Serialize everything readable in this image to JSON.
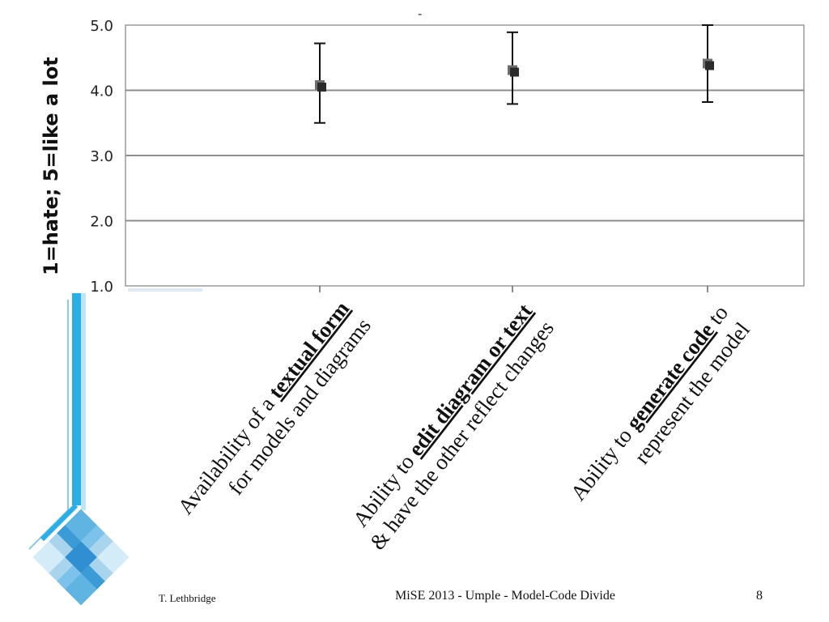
{
  "slide": {
    "author": "T. Lethbridge",
    "footer_title": "MiSE 2013 - Umple - Model-Code Divide",
    "page_number": "8",
    "top_mark": "-"
  },
  "chart_data": {
    "type": "scatter",
    "ylabel": "1=hate; 5=like a lot",
    "ylim": [
      1.0,
      5.0
    ],
    "yticks": [
      "1.0",
      "2.0",
      "3.0",
      "4.0",
      "5.0"
    ],
    "grid": true,
    "categories": [
      {
        "lines": [
          [
            {
              "t": "Availability of a ",
              "u": false
            },
            {
              "t": "textual form",
              "u": true
            }
          ],
          [
            {
              "t": "for models and diagrams",
              "u": false
            }
          ]
        ]
      },
      {
        "lines": [
          [
            {
              "t": "Ability to ",
              "u": false
            },
            {
              "t": "edit diagram or text",
              "u": true
            }
          ],
          [
            {
              "t": "& have the other reflect changes",
              "u": false
            }
          ]
        ]
      },
      {
        "lines": [
          [
            {
              "t": "Ability to ",
              "u": false
            },
            {
              "t": "generate code",
              "u": true
            },
            {
              "t": " to",
              "u": false
            }
          ],
          [
            {
              "t": "represent the model",
              "u": false
            }
          ]
        ]
      }
    ],
    "values": [
      4.08,
      4.31,
      4.41
    ],
    "error_low": [
      3.5,
      3.79,
      3.82
    ],
    "error_high": [
      4.72,
      4.89,
      5.0
    ],
    "marker_color": "#2b2b2b"
  },
  "colors": {
    "grid": "#8c8c8c",
    "frame": "#9a9a9a",
    "accent_blue": "#29aee6",
    "logo_light": "#a9d4ee",
    "logo_mid": "#5fb4e2",
    "logo_dark": "#2f8fd0"
  }
}
